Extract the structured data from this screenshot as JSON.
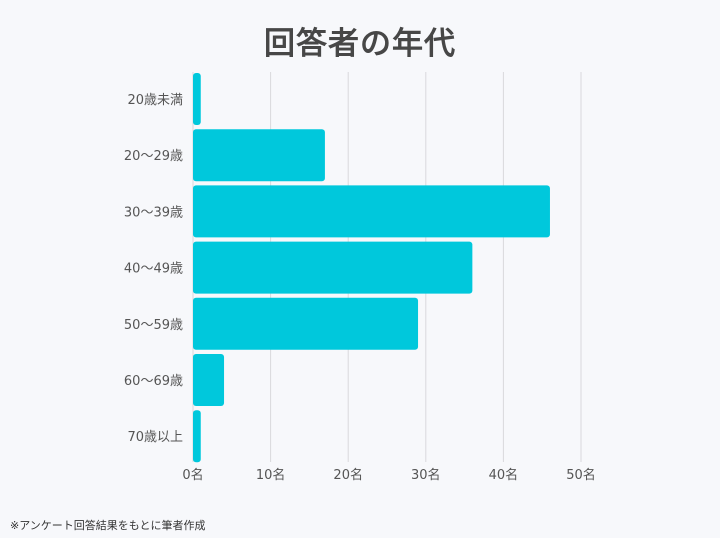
{
  "title": "回答者の年代",
  "footnote": "※アンケート回答結果をもとに筆者作成",
  "colors": {
    "bar": "#00c8dc",
    "grid": "#d9d9dc",
    "axis_text": "#555555",
    "title": "#474747",
    "background": "#f7f8fb"
  },
  "chart_data": {
    "type": "bar",
    "orientation": "horizontal",
    "categories": [
      "20歳未満",
      "20〜29歳",
      "30〜39歳",
      "40〜49歳",
      "50〜59歳",
      "60〜69歳",
      "70歳以上"
    ],
    "values": [
      1,
      17,
      46,
      36,
      29,
      4,
      1
    ],
    "xlim": [
      0,
      50
    ],
    "x_ticks": [
      0,
      10,
      20,
      30,
      40,
      50
    ],
    "x_tick_labels": [
      "0名",
      "10名",
      "20名",
      "30名",
      "40名",
      "50名"
    ],
    "grid": true,
    "legend": "none"
  }
}
